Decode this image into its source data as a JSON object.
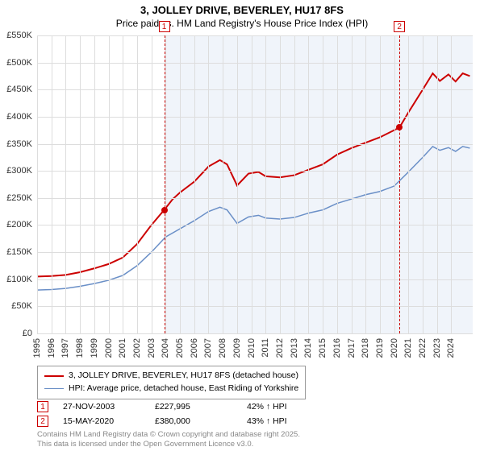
{
  "title_line1": "3, JOLLEY DRIVE, BEVERLEY, HU17 8FS",
  "title_line2": "Price paid vs. HM Land Registry's House Price Index (HPI)",
  "chart": {
    "type": "line",
    "background_color": "#ffffff",
    "grid_color": "#dddddd",
    "shade_color": "#e6edf7",
    "x_start_year": 1995,
    "x_end_year": 2025.5,
    "x_ticks": [
      1995,
      1996,
      1997,
      1998,
      1999,
      2000,
      2001,
      2002,
      2003,
      2004,
      2005,
      2006,
      2007,
      2008,
      2009,
      2010,
      2011,
      2012,
      2013,
      2014,
      2015,
      2016,
      2017,
      2018,
      2019,
      2020,
      2021,
      2022,
      2023,
      2024
    ],
    "ylim": [
      0,
      550000
    ],
    "y_ticks": [
      0,
      50000,
      100000,
      150000,
      200000,
      250000,
      300000,
      350000,
      400000,
      450000,
      500000,
      550000
    ],
    "y_tick_labels": [
      "£0",
      "£50K",
      "£100K",
      "£150K",
      "£200K",
      "£250K",
      "£300K",
      "£350K",
      "£400K",
      "£450K",
      "£500K",
      "£550K"
    ],
    "series": [
      {
        "name": "3, JOLLEY DRIVE, BEVERLEY, HU17 8FS (detached house)",
        "color": "#cc0000",
        "width": 2,
        "points": [
          [
            1995,
            105000
          ],
          [
            1996,
            106000
          ],
          [
            1997,
            108000
          ],
          [
            1998,
            113000
          ],
          [
            1999,
            120000
          ],
          [
            2000,
            128000
          ],
          [
            2001,
            140000
          ],
          [
            2002,
            165000
          ],
          [
            2003,
            200000
          ],
          [
            2003.9,
            227995
          ],
          [
            2004.5,
            248000
          ],
          [
            2005,
            260000
          ],
          [
            2006,
            280000
          ],
          [
            2007,
            308000
          ],
          [
            2007.8,
            320000
          ],
          [
            2008.3,
            312000
          ],
          [
            2009,
            273000
          ],
          [
            2009.8,
            295000
          ],
          [
            2010.5,
            298000
          ],
          [
            2011,
            290000
          ],
          [
            2012,
            288000
          ],
          [
            2013,
            292000
          ],
          [
            2014,
            302000
          ],
          [
            2015,
            312000
          ],
          [
            2016,
            330000
          ],
          [
            2017,
            342000
          ],
          [
            2018,
            352000
          ],
          [
            2019,
            362000
          ],
          [
            2020.37,
            380000
          ],
          [
            2021,
            408000
          ],
          [
            2022,
            450000
          ],
          [
            2022.7,
            480000
          ],
          [
            2023.2,
            466000
          ],
          [
            2023.8,
            478000
          ],
          [
            2024.3,
            465000
          ],
          [
            2024.8,
            480000
          ],
          [
            2025.3,
            475000
          ]
        ]
      },
      {
        "name": "HPI: Average price, detached house, East Riding of Yorkshire",
        "color": "#6a8fc7",
        "width": 1.5,
        "points": [
          [
            1995,
            80000
          ],
          [
            1996,
            81000
          ],
          [
            1997,
            83000
          ],
          [
            1998,
            87000
          ],
          [
            1999,
            92000
          ],
          [
            2000,
            98000
          ],
          [
            2001,
            107000
          ],
          [
            2002,
            125000
          ],
          [
            2003,
            150000
          ],
          [
            2004,
            178000
          ],
          [
            2005,
            193000
          ],
          [
            2006,
            208000
          ],
          [
            2007,
            225000
          ],
          [
            2007.8,
            233000
          ],
          [
            2008.3,
            228000
          ],
          [
            2009,
            203000
          ],
          [
            2009.8,
            215000
          ],
          [
            2010.5,
            218000
          ],
          [
            2011,
            213000
          ],
          [
            2012,
            211000
          ],
          [
            2013,
            214000
          ],
          [
            2014,
            222000
          ],
          [
            2015,
            228000
          ],
          [
            2016,
            240000
          ],
          [
            2017,
            248000
          ],
          [
            2018,
            256000
          ],
          [
            2019,
            262000
          ],
          [
            2020,
            272000
          ],
          [
            2021,
            298000
          ],
          [
            2022,
            325000
          ],
          [
            2022.7,
            345000
          ],
          [
            2023.2,
            338000
          ],
          [
            2023.8,
            343000
          ],
          [
            2024.3,
            336000
          ],
          [
            2024.8,
            345000
          ],
          [
            2025.3,
            342000
          ]
        ]
      }
    ],
    "shaded_bands": [
      {
        "from": 2003.9,
        "to": 2020.37
      },
      {
        "from": 2020.37,
        "to": 2025.5
      }
    ],
    "markers": [
      {
        "id": "1",
        "x": 2003.9,
        "value": 227995
      },
      {
        "id": "2",
        "x": 2020.37,
        "value": 380000
      }
    ],
    "marker_color": "#cc0000",
    "point_color": "#cc0000"
  },
  "legend": {
    "items": [
      {
        "color": "#cc0000",
        "label": "3, JOLLEY DRIVE, BEVERLEY, HU17 8FS (detached house)",
        "width": 2
      },
      {
        "color": "#6a8fc7",
        "label": "HPI: Average price, detached house, East Riding of Yorkshire",
        "width": 1.5
      }
    ]
  },
  "annotations": [
    {
      "id": "1",
      "date": "27-NOV-2003",
      "price": "£227,995",
      "delta": "42% ↑ HPI"
    },
    {
      "id": "2",
      "date": "15-MAY-2020",
      "price": "£380,000",
      "delta": "43% ↑ HPI"
    }
  ],
  "footer_line1": "Contains HM Land Registry data © Crown copyright and database right 2025.",
  "footer_line2": "This data is licensed under the Open Government Licence v3.0."
}
